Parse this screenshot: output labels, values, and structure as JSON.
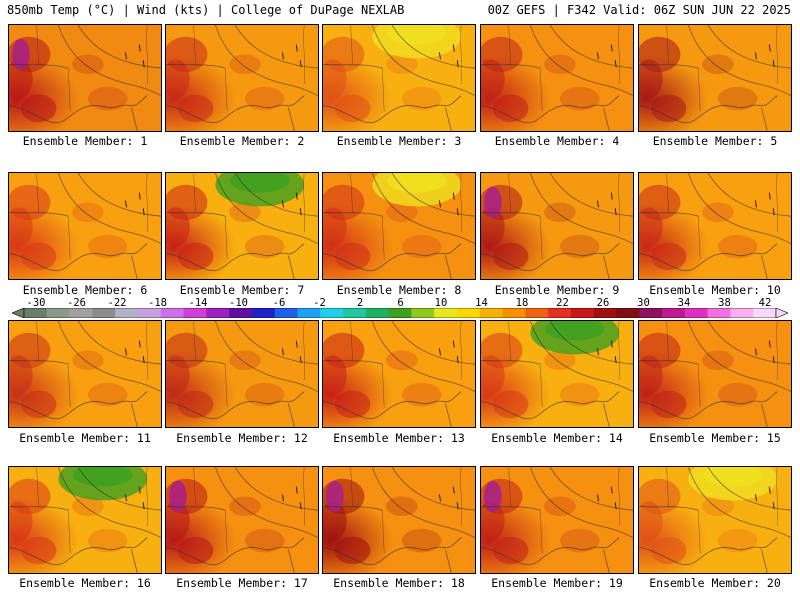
{
  "header": {
    "title_left": "850mb Temp (°C) | Wind (kts) | College of DuPage NEXLAB",
    "title_right": "00Z GEFS | F342 Valid: 06Z SUN JUN 22 2025"
  },
  "legend": {
    "ticks": [
      "-30",
      "-26",
      "-22",
      "-18",
      "-14",
      "-10",
      "-6",
      "-2",
      "2",
      "6",
      "10",
      "14",
      "18",
      "22",
      "26",
      "30",
      "34",
      "38",
      "42"
    ],
    "colors": [
      "#6b7d6b",
      "#8a9a8a",
      "#a0a0a0",
      "#8c8c8c",
      "#b0b0c8",
      "#c8a0e0",
      "#d070e8",
      "#d040d8",
      "#a020c0",
      "#6010a0",
      "#2020c8",
      "#2060e8",
      "#20a0f0",
      "#20d0e8",
      "#20c8a0",
      "#20b060",
      "#40a020",
      "#90c820",
      "#e8e820",
      "#f8d800",
      "#f8b000",
      "#f89000",
      "#f06010",
      "#e83020",
      "#c81818",
      "#a01010",
      "#801010",
      "#901060",
      "#c01890",
      "#e030c0",
      "#f070e0",
      "#f8b0f0",
      "#f8d8f8"
    ]
  },
  "panels": [
    {
      "label": "Ensemble Member: 1",
      "base": "#f08a10",
      "warm": "#b81818",
      "cool": null,
      "hot": "#a8208a"
    },
    {
      "label": "Ensemble Member: 2",
      "base": "#f59a10",
      "warm": "#c82818",
      "cool": null,
      "hot": null
    },
    {
      "label": "Ensemble Member: 3",
      "base": "#f8b010",
      "warm": "#e05018",
      "cool": "#f0e020",
      "hot": null
    },
    {
      "label": "Ensemble Member: 4",
      "base": "#f59010",
      "warm": "#c02018",
      "cool": null,
      "hot": null
    },
    {
      "label": "Ensemble Member: 5",
      "base": "#f59a10",
      "warm": "#a81818",
      "cool": null,
      "hot": null
    },
    {
      "label": "Ensemble Member: 6",
      "base": "#f8a010",
      "warm": "#d83818",
      "cool": null,
      "hot": null
    },
    {
      "label": "Ensemble Member: 7",
      "base": "#f8b010",
      "warm": "#c82018",
      "cool": "#40a020",
      "hot": null
    },
    {
      "label": "Ensemble Member: 8",
      "base": "#f59010",
      "warm": "#d03018",
      "cool": "#f0e020",
      "hot": null
    },
    {
      "label": "Ensemble Member: 9",
      "base": "#f59a10",
      "warm": "#b01818",
      "cool": null,
      "hot": "#a8208a"
    },
    {
      "label": "Ensemble Member: 10",
      "base": "#f8a010",
      "warm": "#c82818",
      "cool": null,
      "hot": null
    },
    {
      "label": "Ensemble Member: 11",
      "base": "#f8a010",
      "warm": "#c83018",
      "cool": null,
      "hot": null
    },
    {
      "label": "Ensemble Member: 12",
      "base": "#f59a10",
      "warm": "#c02818",
      "cool": null,
      "hot": null
    },
    {
      "label": "Ensemble Member: 13",
      "base": "#f8a010",
      "warm": "#c82018",
      "cool": null,
      "hot": null
    },
    {
      "label": "Ensemble Member: 14",
      "base": "#f8b010",
      "warm": "#d83818",
      "cool": "#40a020",
      "hot": null
    },
    {
      "label": "Ensemble Member: 15",
      "base": "#f59010",
      "warm": "#c02018",
      "cool": null,
      "hot": null
    },
    {
      "label": "Ensemble Member: 16",
      "base": "#f8b010",
      "warm": "#d83818",
      "cool": "#40a020",
      "hot": null
    },
    {
      "label": "Ensemble Member: 17",
      "base": "#f59010",
      "warm": "#b81818",
      "cool": null,
      "hot": "#a8208a"
    },
    {
      "label": "Ensemble Member: 18",
      "base": "#f59010",
      "warm": "#a01010",
      "cool": null,
      "hot": "#a8208a"
    },
    {
      "label": "Ensemble Member: 19",
      "base": "#f59010",
      "warm": "#c02018",
      "cool": null,
      "hot": "#a8208a"
    },
    {
      "label": "Ensemble Member: 20",
      "base": "#f8b010",
      "warm": "#e05018",
      "cool": "#f0e020",
      "hot": null
    }
  ]
}
